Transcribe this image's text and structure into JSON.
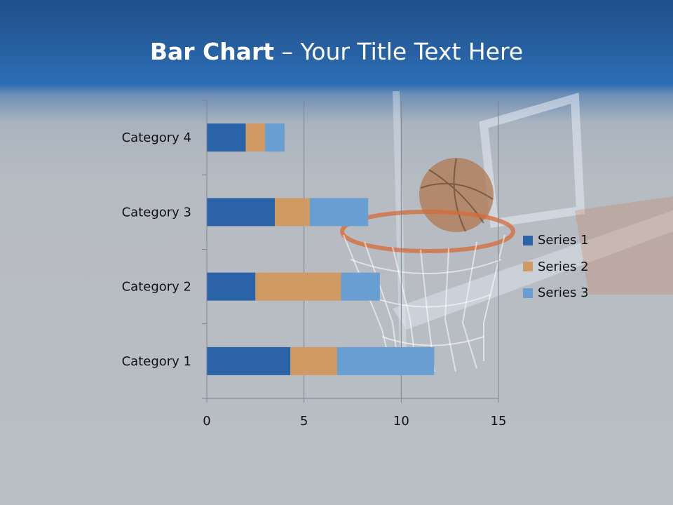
{
  "title": {
    "bold": "Bar Chart",
    "rest": " – Your Title Text Here"
  },
  "colors": {
    "series1": "#2b63a8",
    "series2": "#cf9a63",
    "series3": "#689ed1"
  },
  "chart_data": {
    "type": "bar",
    "orientation": "horizontal",
    "stacked": true,
    "title": "",
    "xlabel": "",
    "ylabel": "",
    "categories": [
      "Category 1",
      "Category 2",
      "Category 3",
      "Category 4"
    ],
    "series": [
      {
        "name": "Series 1",
        "values": [
          4.3,
          2.5,
          3.5,
          2.0
        ]
      },
      {
        "name": "Series 2",
        "values": [
          2.4,
          4.4,
          1.8,
          1.0
        ]
      },
      {
        "name": "Series 3",
        "values": [
          5.0,
          2.0,
          3.0,
          1.0
        ]
      }
    ],
    "xlim": [
      0,
      15
    ],
    "xticks": [
      0,
      5,
      10,
      15
    ],
    "grid": true,
    "legend": "right"
  }
}
